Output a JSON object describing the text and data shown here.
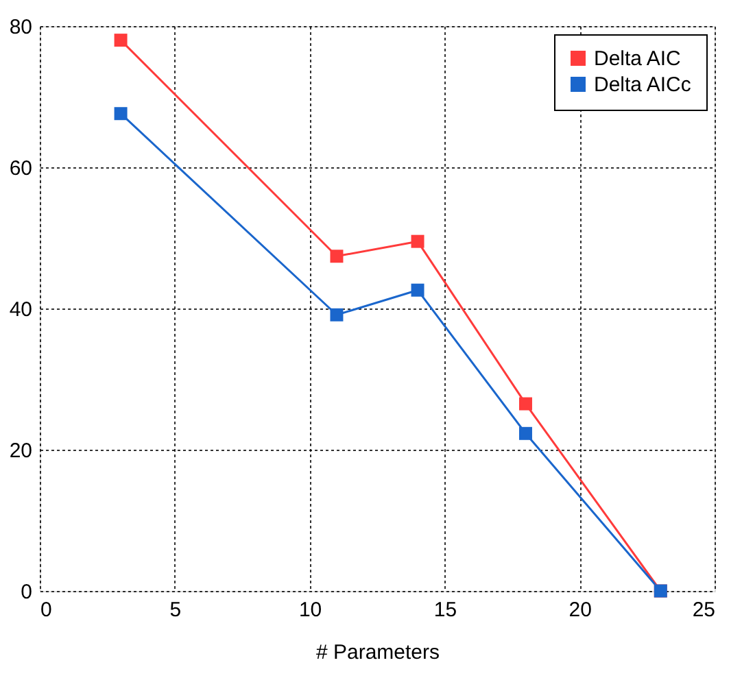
{
  "chart_data": {
    "type": "line",
    "xlabel": "# Parameters",
    "x": [
      3,
      11,
      14,
      18,
      23
    ],
    "series": [
      {
        "name": "Delta AIC",
        "color": "#ff3b3b",
        "values": [
          78,
          47.4,
          49.5,
          26.5,
          0
        ]
      },
      {
        "name": "Delta AICc",
        "color": "#1a66cc",
        "values": [
          67.6,
          39.1,
          42.6,
          22.3,
          0
        ]
      }
    ],
    "xlim": [
      0,
      25
    ],
    "xticks": [
      0,
      5,
      10,
      15,
      20,
      25
    ],
    "ylim": [
      0,
      80
    ],
    "yticks": [
      0,
      20,
      40,
      60,
      80
    ],
    "grid": true,
    "legend": "top right",
    "marker": "square",
    "line_style": "solid"
  }
}
